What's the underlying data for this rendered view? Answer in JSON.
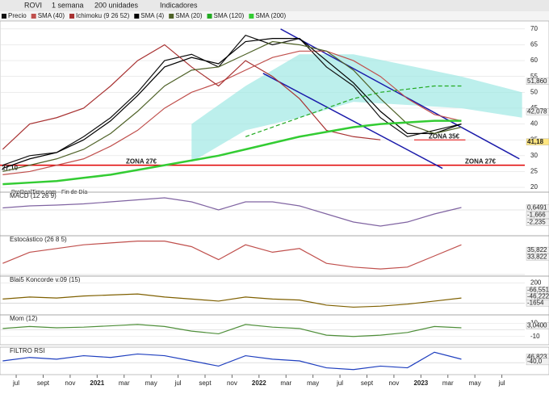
{
  "toolbar": {
    "symbol": "ROVI",
    "period": "1 semana",
    "units": "200 unidades",
    "indicators": "Indicadores"
  },
  "watermark": "ProRealTime.com - Fin de Día",
  "chart_data": [
    {
      "type": "line",
      "x": [
        -1,
        1,
        3,
        5,
        7,
        9,
        11,
        13,
        15,
        17,
        19,
        21,
        23,
        25,
        27,
        29,
        31,
        33
      ],
      "xlim": [
        -1.2,
        37.7
      ],
      "xticks": [
        {
          "value": 0,
          "label": "jul"
        },
        {
          "value": 2,
          "label": "sept"
        },
        {
          "value": 4,
          "label": "nov"
        },
        {
          "value": 6,
          "label": "2021"
        },
        {
          "value": 8,
          "label": "mar"
        },
        {
          "value": 10,
          "label": "may"
        },
        {
          "value": 12,
          "label": "jul"
        },
        {
          "value": 14,
          "label": "sept"
        },
        {
          "value": 16,
          "label": "nov"
        },
        {
          "value": 18,
          "label": "2022"
        },
        {
          "value": 20,
          "label": "mar"
        },
        {
          "value": 22,
          "label": "may"
        },
        {
          "value": 24,
          "label": "jul"
        },
        {
          "value": 26,
          "label": "sept"
        },
        {
          "value": 28,
          "label": "nov"
        },
        {
          "value": 30,
          "label": "2023"
        },
        {
          "value": 32,
          "label": "mar"
        },
        {
          "value": 34,
          "label": "may"
        },
        {
          "value": 36,
          "label": "jul"
        }
      ],
      "ylim": [
        19,
        72
      ],
      "yticks": [
        20,
        25,
        30,
        35,
        40,
        45,
        50,
        55,
        60,
        65,
        70
      ],
      "series": [
        {
          "name": "Precio",
          "color": "#111111",
          "values": [
            27,
            30,
            31,
            36,
            42,
            50,
            60,
            62,
            58,
            68,
            65,
            67,
            58,
            52,
            42,
            36,
            38,
            40
          ]
        },
        {
          "name": "SMA (40)",
          "color": "#c0504d",
          "values": [
            24,
            25,
            27,
            29,
            33,
            38,
            45,
            50,
            53,
            57,
            61,
            63,
            63,
            60,
            55,
            48,
            43,
            41
          ]
        },
        {
          "name": "Ichimoku (9 26 52)",
          "color": "#a83232",
          "values": [
            32,
            40,
            42,
            45,
            52,
            60,
            65,
            58,
            52,
            60,
            55,
            48,
            38,
            36,
            35,
            null,
            null,
            null
          ]
        },
        {
          "name": "SMA (4)",
          "color": "#000000",
          "values": [
            26,
            29,
            31,
            35,
            41,
            49,
            58,
            61,
            59,
            66,
            67,
            67,
            60,
            53,
            44,
            37,
            37,
            40
          ]
        },
        {
          "name": "SMA (20)",
          "color": "#4f6228",
          "values": [
            25,
            27,
            29,
            32,
            37,
            44,
            52,
            57,
            58,
            62,
            66,
            65,
            63,
            57,
            48,
            40,
            37,
            39
          ]
        },
        {
          "name": "SMA (120)",
          "color": "#22aa22",
          "values": [
            null,
            null,
            null,
            null,
            null,
            null,
            null,
            null,
            null,
            36,
            39,
            42,
            45,
            48,
            50,
            51,
            52,
            52
          ]
        },
        {
          "name": "SMA (200)",
          "color": "#33cc33",
          "values": [
            21,
            21.5,
            22,
            23,
            24,
            25.5,
            27,
            28.5,
            30,
            32,
            34,
            36,
            37.5,
            39,
            40,
            40.5,
            41,
            41
          ]
        }
      ],
      "channels": [
        {
          "x": [
            19.6,
            37.3
          ],
          "y": [
            70,
            29
          ]
        },
        {
          "x": [
            18.3,
            31.6
          ],
          "y": [
            56,
            26
          ]
        }
      ],
      "levels": [
        27,
        35
      ],
      "annotations": [
        "ZONA 27€",
        "ZONA 27€",
        "ZONA 35€",
        "27,10"
      ],
      "last_labels": [
        "51,860",
        "42,078",
        "41,18"
      ]
    },
    {
      "type": "line",
      "title": "MACD (12 26 9)",
      "x": [
        -1,
        1,
        3,
        5,
        7,
        9,
        11,
        13,
        15,
        17,
        19,
        21,
        23,
        25,
        27,
        29,
        31,
        33
      ],
      "ylim": [
        -6,
        4
      ],
      "series": [
        {
          "color": "#8064a2",
          "values": [
            0.5,
            1,
            1.2,
            1.5,
            2,
            2.5,
            3,
            2,
            0,
            2,
            2,
            1,
            -1,
            -3,
            -4,
            -3,
            -1,
            0.6
          ]
        }
      ],
      "last_labels": [
        "0,6491",
        "-1,666",
        "-2,235"
      ]
    },
    {
      "type": "line",
      "title": "Estocástico (26 8 5)",
      "x": [
        -1,
        1,
        3,
        5,
        7,
        9,
        11,
        13,
        15,
        17,
        19,
        21,
        23,
        25,
        27,
        29,
        31,
        33
      ],
      "ylim": [
        0,
        100
      ],
      "series": [
        {
          "color": "#c0504d",
          "values": [
            30,
            60,
            70,
            80,
            85,
            90,
            90,
            75,
            40,
            80,
            60,
            70,
            30,
            20,
            15,
            20,
            50,
            80
          ]
        }
      ],
      "last_labels": [
        "35,822",
        "33,822"
      ]
    },
    {
      "type": "line",
      "title": "Blai5 Koncorde v.09 (15)",
      "x": [
        -1,
        1,
        3,
        5,
        7,
        9,
        11,
        13,
        15,
        17,
        19,
        21,
        23,
        25,
        27,
        29,
        31,
        33
      ],
      "ylim": [
        -100,
        250
      ],
      "yticks": [
        200,
        0
      ],
      "series": [
        {
          "color": "#7f6000",
          "values": [
            40,
            60,
            50,
            70,
            80,
            90,
            60,
            40,
            20,
            60,
            40,
            30,
            -20,
            -40,
            -30,
            -10,
            20,
            50
          ]
        }
      ],
      "last_labels": [
        "-66,551",
        "-46,222",
        "-1654"
      ]
    },
    {
      "type": "line",
      "title": "Mom (12)",
      "x": [
        -1,
        1,
        3,
        5,
        7,
        9,
        11,
        13,
        15,
        17,
        19,
        21,
        23,
        25,
        27,
        29,
        31,
        33
      ],
      "ylim": [
        -20,
        20
      ],
      "yticks": [
        10,
        -10
      ],
      "series": [
        {
          "color": "#4f8f3a",
          "values": [
            2,
            5,
            3,
            4,
            6,
            8,
            5,
            -2,
            -6,
            8,
            4,
            2,
            -8,
            -10,
            -8,
            -4,
            5,
            3
          ]
        }
      ],
      "last_labels": [
        "3,0400"
      ]
    },
    {
      "type": "line",
      "title": "FILTRO RSI",
      "x": [
        -1,
        1,
        3,
        5,
        7,
        9,
        11,
        13,
        15,
        17,
        19,
        21,
        23,
        25,
        27,
        29,
        31,
        33
      ],
      "ylim": [
        -60,
        80
      ],
      "series": [
        {
          "color": "#1f3fbf",
          "values": [
            10,
            30,
            20,
            40,
            30,
            50,
            40,
            10,
            -20,
            40,
            20,
            10,
            -30,
            -40,
            -20,
            -30,
            60,
            20
          ]
        }
      ],
      "last_labels": [
        "46,823",
        "-40,0"
      ]
    }
  ]
}
